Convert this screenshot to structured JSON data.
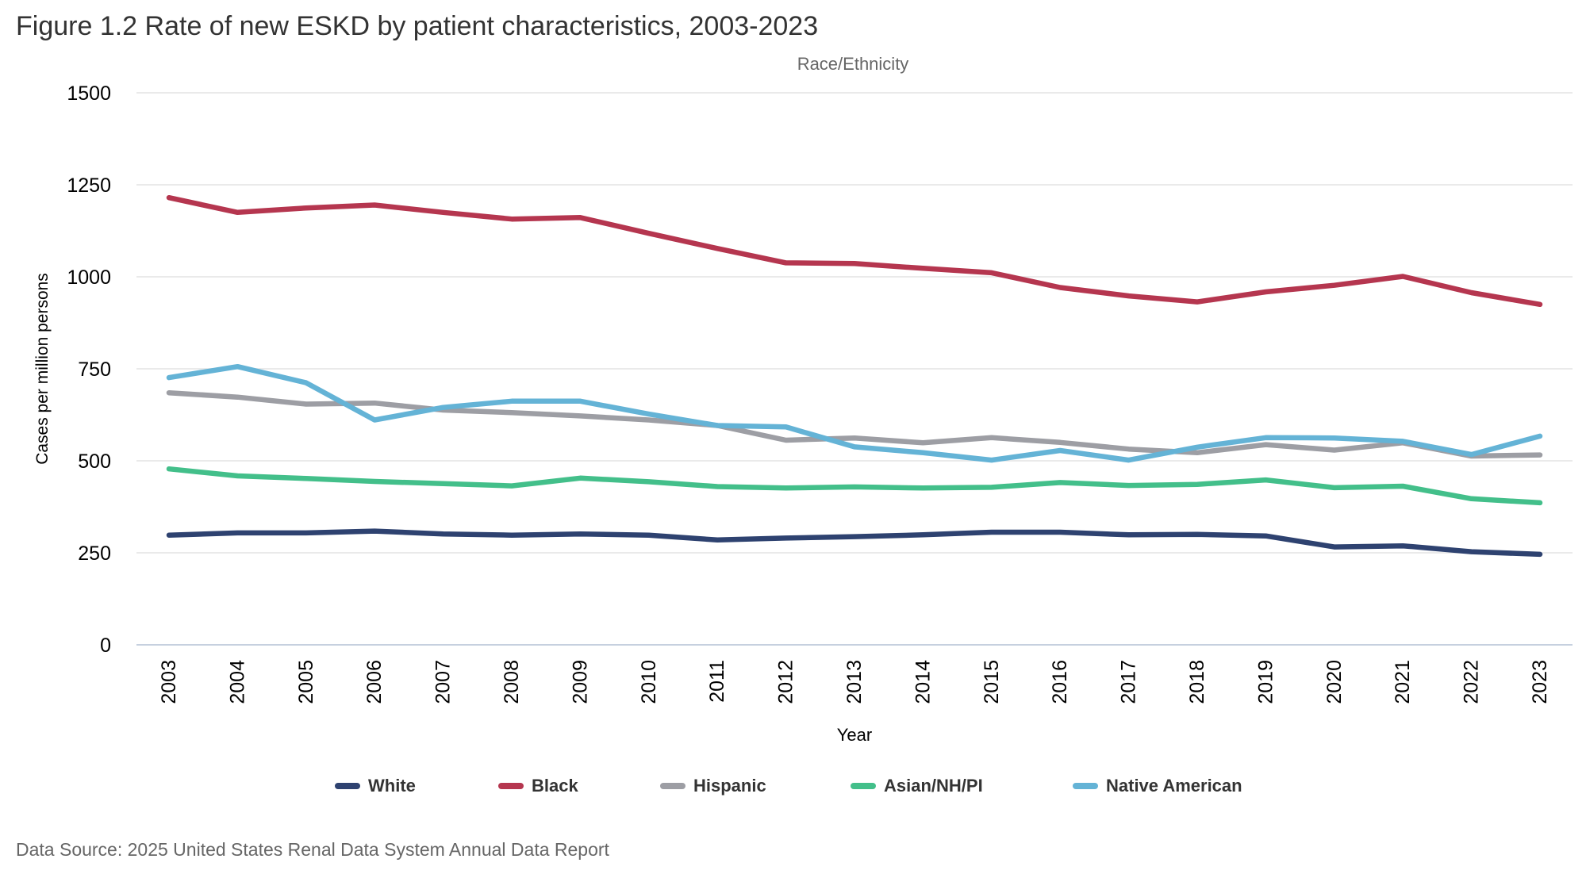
{
  "figure": {
    "title": "Figure 1.2 Rate of new ESKD by patient characteristics, 2003-2023",
    "source": "Data Source: 2025 United States Renal Data System Annual Data Report"
  },
  "chart_data": {
    "type": "line",
    "title": "Figure 1.2 Rate of new ESKD by patient characteristics, 2003-2023",
    "subtitle": "Race/Ethnicity",
    "xlabel": "Year",
    "ylabel": "Cases per million persons",
    "ylim": [
      0,
      1500
    ],
    "yticks": [
      0,
      250,
      500,
      750,
      1000,
      1250,
      1500
    ],
    "ytick_labels": [
      "0",
      "250",
      "500",
      "750",
      "1000",
      "1250",
      "1500"
    ],
    "grid": true,
    "legend_position": "bottom",
    "categories": [
      "2003",
      "2004",
      "2005",
      "2006",
      "2007",
      "2008",
      "2009",
      "2010",
      "2011",
      "2012",
      "2013",
      "2014",
      "2015",
      "2016",
      "2017",
      "2018",
      "2019",
      "2020",
      "2021",
      "2022",
      "2023"
    ],
    "series": [
      {
        "name": "White",
        "color": "#2e4270",
        "values": [
          298,
          304,
          304,
          309,
          301,
          298,
          301,
          298,
          285,
          290,
          294,
          299,
          306,
          306,
          299,
          300,
          296,
          266,
          269,
          253,
          246
        ]
      },
      {
        "name": "Black",
        "color": "#b5364f",
        "values": [
          1215,
          1175,
          1187,
          1195,
          1175,
          1157,
          1161,
          1118,
          1077,
          1038,
          1036,
          1023,
          1011,
          971,
          948,
          932,
          959,
          977,
          1001,
          957,
          925
        ]
      },
      {
        "name": "Hispanic",
        "color": "#9d9ea4",
        "values": [
          685,
          673,
          654,
          657,
          638,
          631,
          622,
          611,
          596,
          556,
          562,
          549,
          563,
          550,
          532,
          522,
          544,
          529,
          549,
          513,
          516
        ]
      },
      {
        "name": "Asian/NH/PI",
        "color": "#43bf8a",
        "values": [
          478,
          459,
          452,
          444,
          438,
          432,
          453,
          443,
          430,
          426,
          429,
          426,
          428,
          441,
          433,
          436,
          448,
          427,
          431,
          397,
          386
        ]
      },
      {
        "name": "Native American",
        "color": "#64b3d6",
        "values": [
          726,
          756,
          712,
          611,
          645,
          662,
          662,
          627,
          596,
          592,
          538,
          522,
          502,
          528,
          502,
          537,
          563,
          562,
          553,
          517,
          567
        ]
      }
    ]
  }
}
